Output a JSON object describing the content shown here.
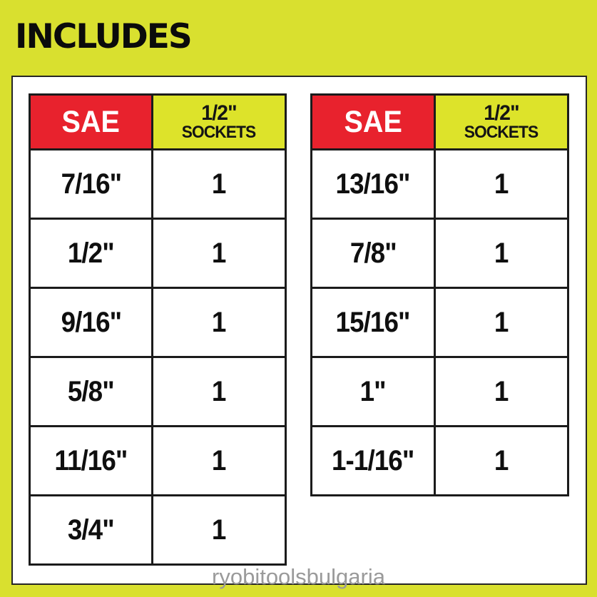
{
  "page": {
    "title": "INCLUDES",
    "watermark": "ryobitoolsbulgaria"
  },
  "colors": {
    "background": "#d9e02f",
    "header_red": "#e8222d",
    "header_yellow": "#dde32a",
    "table_border": "#1b1b1b",
    "panel_bg": "#ffffff",
    "text": "#0f0f0f",
    "watermark_gray": "#9a9a9a"
  },
  "tables": [
    {
      "headers": {
        "col1": "SAE",
        "col2_line1": "1/2\"",
        "col2_line2": "SOCKETS"
      },
      "rows": [
        {
          "size": "7/16\"",
          "qty": "1"
        },
        {
          "size": "1/2\"",
          "qty": "1"
        },
        {
          "size": "9/16\"",
          "qty": "1"
        },
        {
          "size": "5/8\"",
          "qty": "1"
        },
        {
          "size": "11/16\"",
          "qty": "1"
        },
        {
          "size": "3/4\"",
          "qty": "1"
        }
      ]
    },
    {
      "headers": {
        "col1": "SAE",
        "col2_line1": "1/2\"",
        "col2_line2": "SOCKETS"
      },
      "rows": [
        {
          "size": "13/16\"",
          "qty": "1"
        },
        {
          "size": "7/8\"",
          "qty": "1"
        },
        {
          "size": "15/16\"",
          "qty": "1"
        },
        {
          "size": "1\"",
          "qty": "1"
        },
        {
          "size": "1-1/16\"",
          "qty": "1"
        }
      ]
    }
  ]
}
